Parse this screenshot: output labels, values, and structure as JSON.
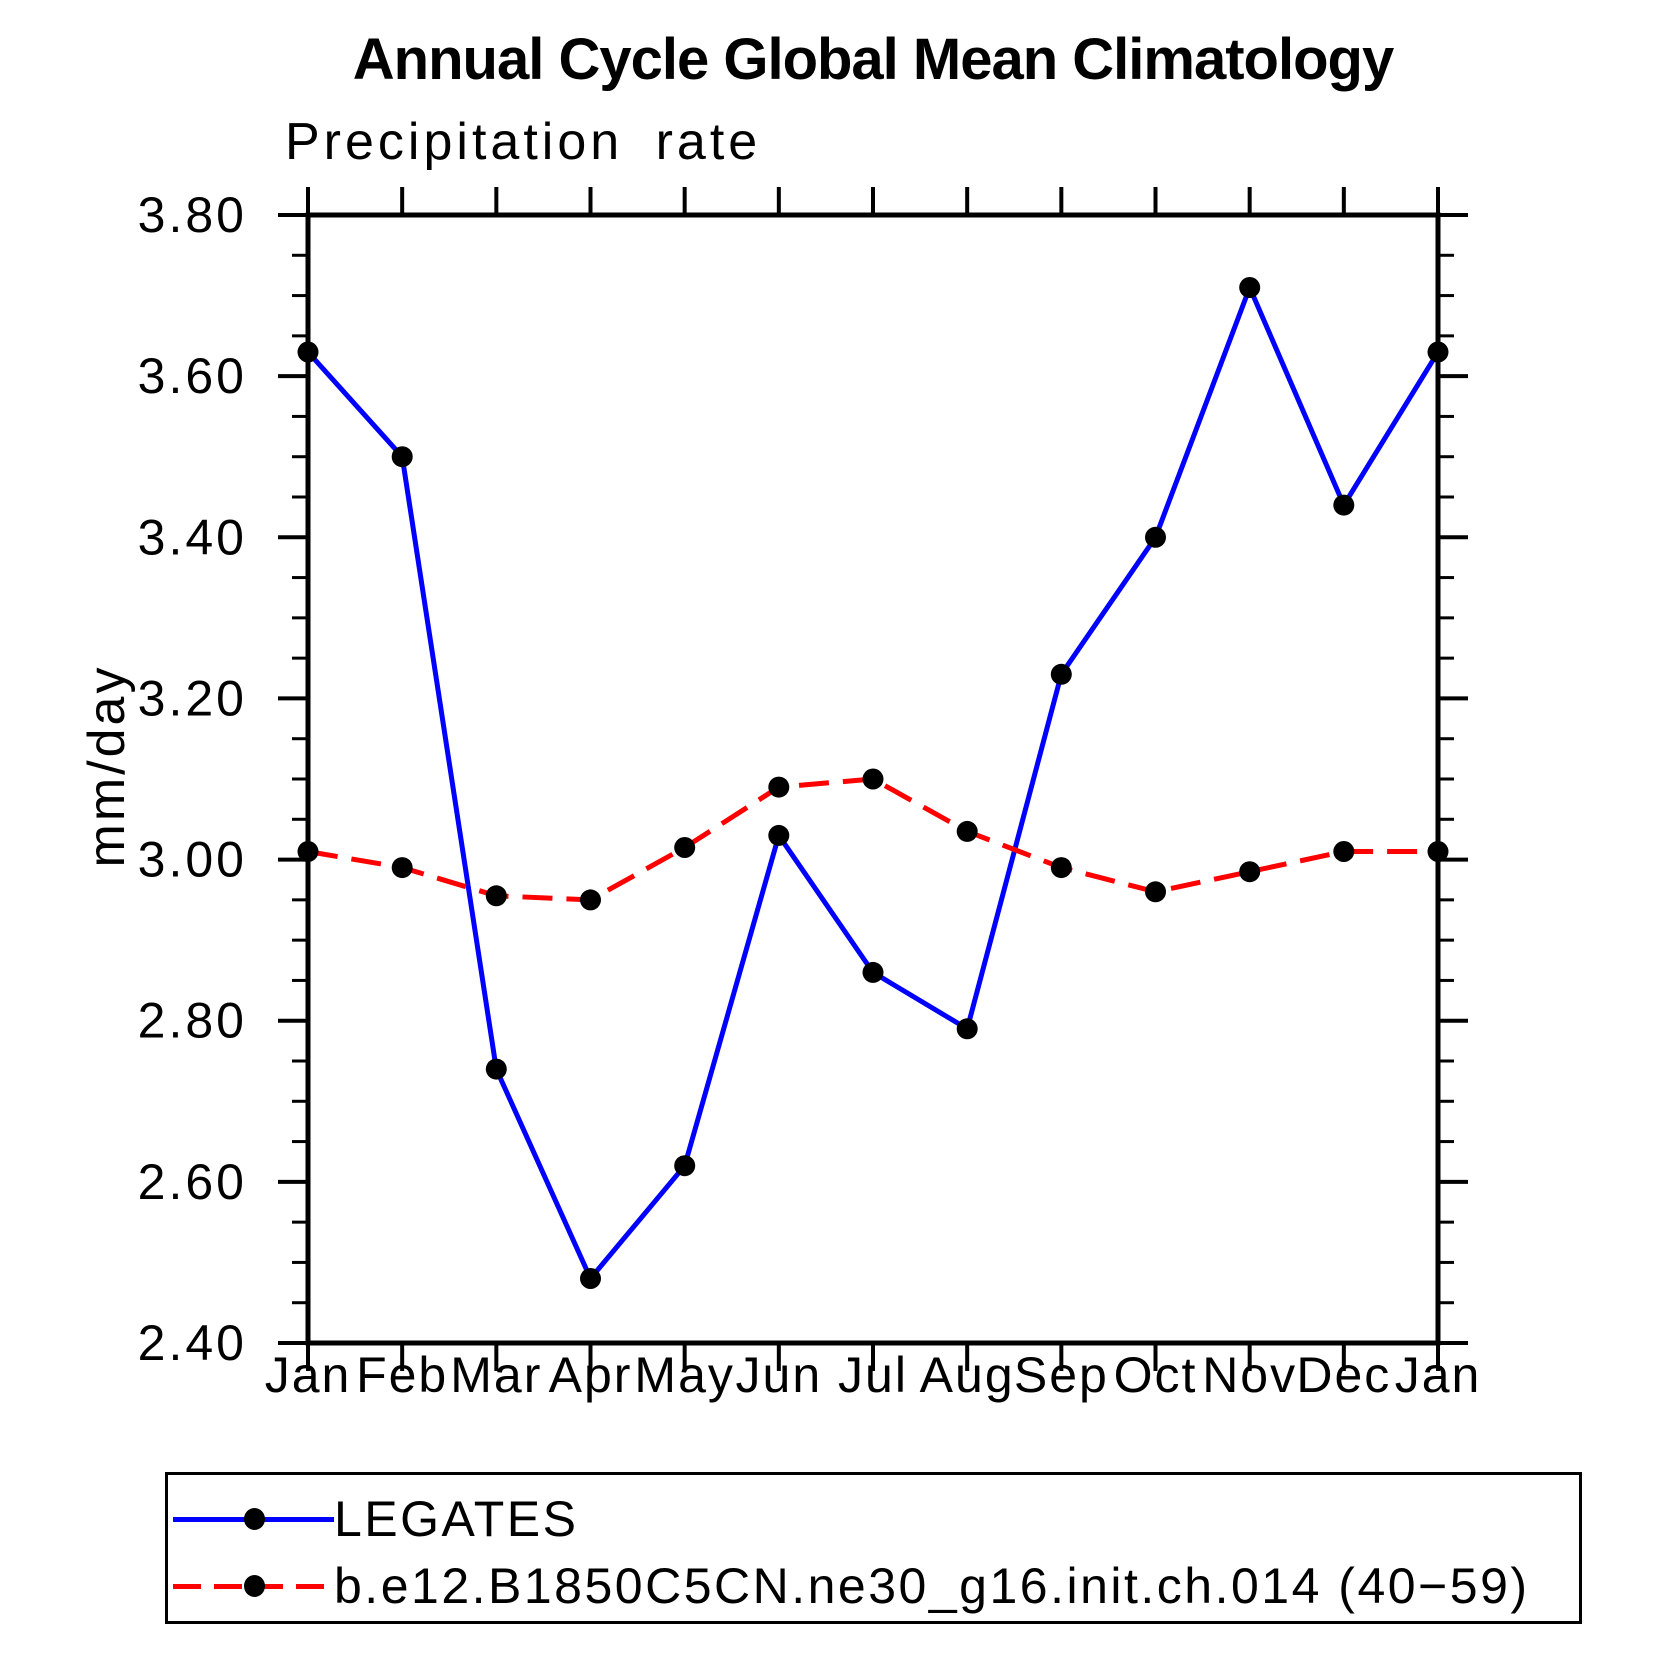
{
  "page": {
    "title": "Annual Cycle Global Mean Climatology",
    "subtitle": "Precipitation rate",
    "y_axis_title": "mm/day"
  },
  "chart_data": {
    "type": "line",
    "title": "Annual Cycle Global Mean Climatology",
    "subtitle": "Precipitation rate",
    "ylabel": "mm/day",
    "xlabel": "",
    "x_categories": [
      "Jan",
      "Feb",
      "Mar",
      "Apr",
      "May",
      "Jun",
      "Jul",
      "Aug",
      "Sep",
      "Oct",
      "Nov",
      "Dec",
      "Jan"
    ],
    "ylim": [
      2.4,
      3.8
    ],
    "ytick_step": 0.2,
    "ytick_minor_step": 0.05,
    "yticks": [
      {
        "value": 3.8,
        "label": "3.80"
      },
      {
        "value": 3.6,
        "label": "3.60"
      },
      {
        "value": 3.4,
        "label": "3.40"
      },
      {
        "value": 3.2,
        "label": "3.20"
      },
      {
        "value": 3.0,
        "label": "3.00"
      },
      {
        "value": 2.8,
        "label": "2.80"
      },
      {
        "value": 2.6,
        "label": "2.60"
      },
      {
        "value": 2.4,
        "label": "2.40"
      }
    ],
    "grid": false,
    "legend_position": "bottom-left-box",
    "axis_color": "#000000",
    "marker_shape": "filled-circle",
    "series": [
      {
        "name": "LEGATES",
        "color": "#0000ff",
        "line_style": "solid",
        "marker_color": "#000000",
        "values": [
          3.63,
          3.5,
          2.74,
          2.48,
          2.62,
          3.03,
          2.86,
          2.79,
          3.23,
          3.4,
          3.71,
          3.44,
          3.63
        ]
      },
      {
        "name": "b.e12.B1850C5CN.ne30_g16.init.ch.014 (40−59)",
        "color": "#ff0000",
        "line_style": "dashed",
        "marker_color": "#000000",
        "values": [
          3.01,
          2.99,
          2.955,
          2.95,
          3.015,
          3.09,
          3.1,
          3.035,
          2.99,
          2.96,
          2.985,
          3.01,
          3.01
        ]
      }
    ]
  }
}
